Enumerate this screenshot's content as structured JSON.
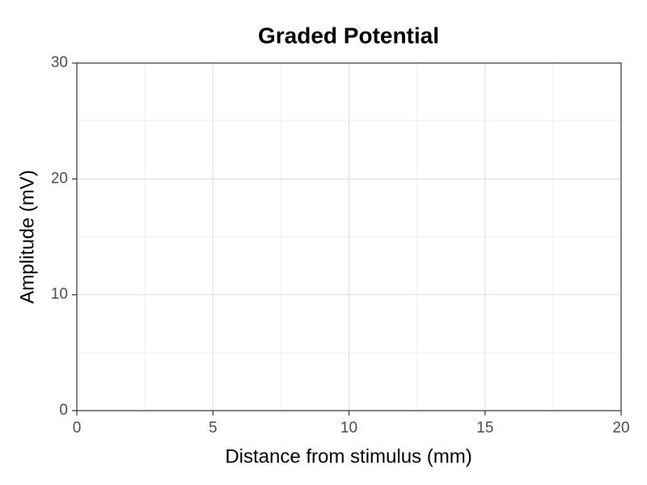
{
  "chart_data": {
    "type": "line",
    "title": "Graded Potential",
    "x_label": "Distance from stimulus (mm)",
    "y_label": "Amplitude (mV)",
    "xlim": [
      0,
      20
    ],
    "xticks": [
      0,
      5,
      10,
      15,
      20
    ],
    "ylim": [
      0,
      30
    ],
    "yticks": [
      0,
      10,
      20,
      30
    ],
    "grid": true
  }
}
